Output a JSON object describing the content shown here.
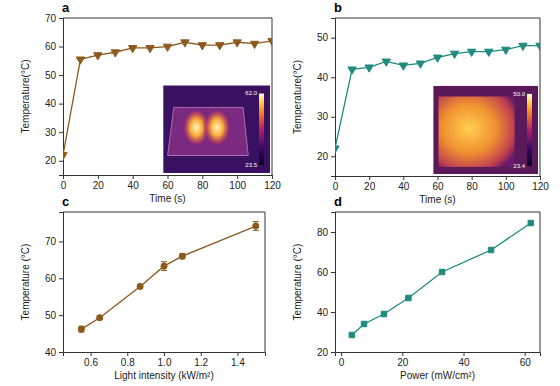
{
  "chart_data": [
    {
      "type": "line",
      "title": "a",
      "x_label": "Time (s)",
      "y_label": "Temperature(°C)",
      "x": [
        0,
        10,
        20,
        30,
        40,
        50,
        60,
        70,
        80,
        90,
        100,
        110,
        120
      ],
      "series": [
        {
          "color": "#8c5a1e",
          "marker": "triangle-down",
          "line_style": "solid",
          "values": [
            22,
            55.5,
            57,
            58,
            59.5,
            59.5,
            60,
            61.5,
            60.5,
            60.5,
            61.5,
            61,
            62
          ]
        }
      ],
      "xlim": [
        0,
        120
      ],
      "xticks": [
        0,
        20,
        40,
        60,
        80,
        100,
        120
      ],
      "ylim": [
        15,
        70
      ],
      "yticks": [
        20,
        30,
        40,
        50,
        60,
        70
      ],
      "colorbar_range": [
        23.5,
        62
      ],
      "colorbar_ticks": [
        {
          "value": 62,
          "label": "62.0"
        },
        23.5
      ]
    },
    {
      "type": "line",
      "title": "b",
      "x_label": "Time (s)",
      "y_label": "Temperature(°C)",
      "x": [
        0,
        10,
        20,
        30,
        40,
        50,
        60,
        70,
        80,
        90,
        100,
        110,
        120
      ],
      "series": [
        {
          "color": "#1e8b7e",
          "marker": "triangle-down",
          "line_style": "solid",
          "values": [
            22,
            42,
            42.5,
            44,
            43,
            43.5,
            45,
            46,
            46.5,
            46.5,
            47,
            48,
            48
          ]
        }
      ],
      "xlim": [
        0,
        120
      ],
      "xticks": [
        0,
        20,
        40,
        60,
        80,
        100,
        120
      ],
      "ylim": [
        15,
        55
      ],
      "yticks": [
        20,
        30,
        40,
        50
      ],
      "colorbar_range": [
        23.4,
        50
      ],
      "colorbar_ticks": [
        {
          "value": 50,
          "label": "50.0"
        },
        23.4
      ]
    },
    {
      "type": "line",
      "title": "c",
      "x_label": "Light intensity (kW/m²)",
      "y_label": "Temperature (°C)",
      "x": [
        0.55,
        0.65,
        0.87,
        1.0,
        1.1,
        1.5
      ],
      "series": [
        {
          "color": "#8c5a1e",
          "marker": "circle",
          "line_style": "solid",
          "values": [
            46.2,
            49.3,
            57.8,
            63.3,
            66,
            74.2
          ],
          "errors": [
            0.8,
            0.5,
            0.5,
            1.2,
            0.7,
            1.2
          ]
        }
      ],
      "xlim": [
        0.45,
        1.55
      ],
      "xticks": [
        0.6,
        0.8,
        {
          "value": 1,
          "label": "1.0"
        },
        1.2,
        1.4
      ],
      "ylim": [
        40,
        78
      ],
      "yticks": [
        40,
        50,
        60,
        70
      ]
    },
    {
      "type": "line",
      "title": "d",
      "x_label": "Power (mW/cm²)",
      "y_label": "Temperature (°C)",
      "x": [
        3.5,
        7.5,
        14,
        22,
        33,
        49,
        62
      ],
      "series": [
        {
          "color": "#1e8b7e",
          "marker": "square",
          "line_style": "solid",
          "values": [
            28.5,
            34,
            39,
            47,
            60,
            71,
            84.5
          ]
        }
      ],
      "xlim": [
        -2,
        65
      ],
      "xticks": [
        0,
        20,
        40,
        60
      ],
      "ylim": [
        20,
        90
      ],
      "yticks": [
        20,
        40,
        60,
        80
      ]
    }
  ]
}
